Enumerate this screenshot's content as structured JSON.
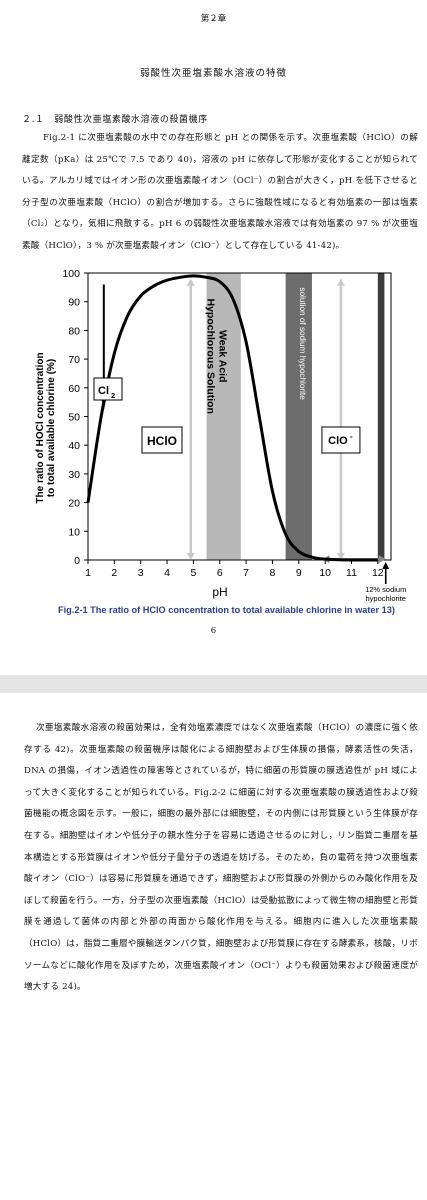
{
  "page1": {
    "chapter": "第２章",
    "title": "弱酸性次亜塩素酸水溶液の特徴",
    "section": "２.１　弱酸性次亜塩素酸水溶液の殺菌機序",
    "paragraph": "Fig.2-1 に次亜塩素酸の水中での存在形態と pH との関係を示す。次亜塩素酸（HClO）の解離定数（pKa）は 25℃で 7.5 であり 40)，溶液の pH に依存して形態が変化することが知られている。アルカリ域ではイオン形の次亜塩素酸イオン（OCl⁻）の割合が大きく，pH を低下させると分子型の次亜塩素酸（HClO）の割合が増加する。さらに強酸性域になると有効塩素の一部は塩素（Cl₂）となり，気相に飛散する。pH 6 の弱酸性次亜塩素酸水溶液では有効塩素の 97 % が次亜塩素酸（HClO），3 % が次亜塩素酸イオン（ClO⁻）として存在している 41-42)。",
    "caption": "Fig.2-1  The ratio of HClO concentration to total available chlorine in water 13)",
    "page_number": "6"
  },
  "page2": {
    "paragraph": "次亜塩素酸水溶液の殺菌効果は，全有効塩素濃度ではなく次亜塩素酸（HClO）の濃度に強く依存する 42)。次亜塩素酸の殺菌機序は酸化による細胞壁および生体膜の損傷，酵素活性の失活，DNA の損傷，イオン透過性の障害等とされているが，特に細菌の形質膜の膜透過性が pH 域によって大きく変化することが知られている。Fig.2-2 に細菌に対する次亜塩素酸の膜透過性および殺菌機能の概念図を示す。一般に，細胞の最外部には細胞壁，その内側には形質膜という生体膜が存在する。細胞壁はイオンや低分子の親水性分子を容易に透過させるのに対し，リン脂質二重層を基本構造とする形質膜はイオンや低分子量分子の透過を妨げる。そのため，負の電荷を持つ次亜塩素酸イオン（ClO⁻）は容易に形質膜を通過できず，細胞壁および形質膜の外側からのみ酸化作用を及ぼして殺菌を行う。一方，分子型の次亜塩素酸（HClO）は受動拡散によって微生物の細胞壁と形質膜を通過して菌体の内部と外部の両面から酸化作用を与える。細胞内に進入した次亜塩素酸（HClO）は，脂質二重層や膜輸送タンパク質，細胞壁および形質膜に存在する酵素系，核酸，リボソームなどに酸化作用を及ぼすため，次亜塩素酸イオン（OCl⁻）よりも殺菌効果および殺菌速度が増大する 24)。"
  },
  "chart_data": {
    "type": "line",
    "ylabel": "The ratio of HOCl concentration to total available chlorine (%)",
    "xlabel": "pH",
    "xlim": [
      1,
      12.5
    ],
    "ylim": [
      0,
      100
    ],
    "xticks": [
      "1",
      "2",
      "3",
      "4",
      "5",
      "6",
      "7",
      "8",
      "9",
      "10",
      "11",
      "12"
    ],
    "yticks": [
      "0",
      "10",
      "20",
      "30",
      "40",
      "50",
      "60",
      "70",
      "80",
      "90",
      "100"
    ],
    "series": [
      {
        "x": [
          1,
          1.5,
          2,
          2.5,
          3,
          3.5,
          4,
          4.5,
          5,
          5.5,
          6,
          6.5,
          7,
          7.5,
          8,
          8.5,
          9,
          9.5,
          10,
          11,
          12
        ],
        "y": [
          20,
          50,
          72,
          85,
          92,
          95.5,
          97.5,
          98.5,
          99,
          98.5,
          97,
          91,
          76,
          50,
          24,
          9,
          3,
          1,
          0.3,
          0,
          0
        ]
      }
    ],
    "annotations": {
      "cl2": "Cl",
      "cl2_sub": "2",
      "hclo": "HClO",
      "weak_acid": [
        "Weak Acid",
        "Hypochlorous Solution"
      ],
      "sodium_hypochlorite": "solution of sodium hypochlorite",
      "clo": "ClO",
      "clo_sup": "-",
      "twelve_pct": [
        "12% sodium",
        "hypochlorite"
      ]
    },
    "shaded_bands": [
      {
        "from": 5.5,
        "to": 6.8,
        "label": "Weak Acid Hypochlorous Solution"
      },
      {
        "from": 8.5,
        "to": 9.5,
        "label": "solution of sodium hypochlorite"
      },
      {
        "from": 12.0,
        "to": 12.25,
        "label": "12% sodium hypochlorite"
      }
    ],
    "colors": {
      "curve": "#000000",
      "weak_band": "#b8b8b8",
      "sodium_band": "#6d6d6d",
      "twelve_band": "#3c3c3c",
      "arrow": "#c8c8c8",
      "caption": "#2a3f8f"
    }
  }
}
